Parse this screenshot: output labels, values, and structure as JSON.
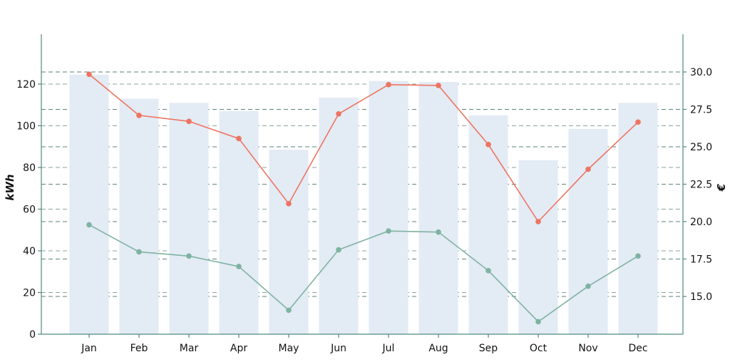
{
  "chart_data": {
    "type": "bar",
    "categories": [
      "Jan",
      "Feb",
      "Mar",
      "Apr",
      "May",
      "Jun",
      "Jul",
      "Aug",
      "Sep",
      "Oct",
      "Nov",
      "Dec"
    ],
    "series": [
      {
        "type": "bar",
        "axis": "left",
        "color": "#e3ebf5",
        "values": [
          124.5,
          113,
          111,
          107,
          88.5,
          113.5,
          121.5,
          121,
          105,
          83.5,
          98.5,
          111
        ]
      },
      {
        "type": "line",
        "axis": "right",
        "color": "#ee7460",
        "values": [
          29.85,
          27.1,
          26.7,
          25.55,
          21.2,
          27.2,
          29.15,
          29.1,
          25.15,
          20.0,
          23.5,
          26.65
        ]
      },
      {
        "type": "line",
        "axis": "left",
        "color": "#7fb3a1",
        "values": [
          52.5,
          39.5,
          37.5,
          32.5,
          11.5,
          40.5,
          49.5,
          49,
          30.5,
          6,
          23,
          37.5
        ]
      }
    ],
    "y_left": {
      "label": "kWh",
      "ticks": [
        0,
        20,
        40,
        60,
        80,
        100,
        120
      ],
      "range": [
        0,
        120
      ]
    },
    "y_right": {
      "label": "€",
      "ticks": [
        "15.0",
        "17.5",
        "20.0",
        "22.5",
        "25.0",
        "27.5",
        "30.0"
      ],
      "range": [
        15.0,
        30.0
      ]
    },
    "grid": "dashed"
  }
}
